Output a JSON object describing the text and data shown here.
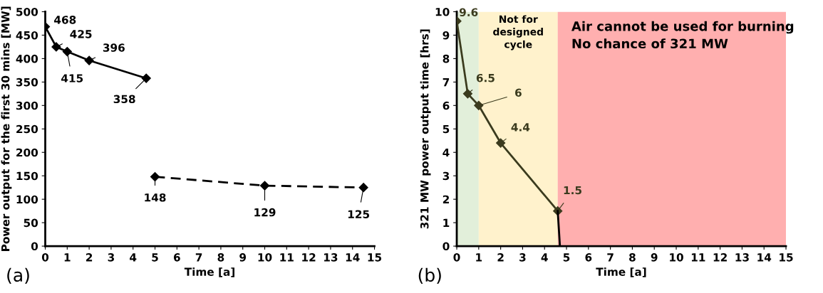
{
  "chart_data": [
    {
      "type": "line",
      "ylabel": "Power output for the first 30 mins [MW]",
      "xlabel": "Time [a]",
      "annotations": [
        "(a)"
      ],
      "xlim": [
        0,
        15
      ],
      "xticks": [
        0,
        1,
        2,
        3,
        4,
        5,
        6,
        7,
        8,
        9,
        10,
        11,
        12,
        13,
        14,
        15
      ],
      "ylim": [
        0,
        500
      ],
      "yticks": [
        0,
        50,
        100,
        150,
        200,
        250,
        300,
        350,
        400,
        450,
        500
      ],
      "marker": "diamond",
      "grid": false,
      "legend": false,
      "series": [
        {
          "color": "#000000",
          "line_style": "solid",
          "x": [
            0,
            0.5,
            1,
            2,
            4.6
          ],
          "values": [
            468,
            425,
            415,
            396,
            358
          ],
          "value_labels": [
            "468",
            "425",
            "415",
            "396",
            "358"
          ]
        },
        {
          "color": "#000000",
          "line_style": "dashed",
          "x": [
            5,
            10,
            14.5
          ],
          "values": [
            148,
            129,
            125
          ],
          "value_labels": [
            "148",
            "129",
            "125"
          ]
        }
      ]
    },
    {
      "type": "line",
      "ylabel": "321 MW power output time [hrs]",
      "xlabel": "Time [a]",
      "annotations": [
        "(b)"
      ],
      "xlim": [
        0,
        15
      ],
      "xticks": [
        0,
        1,
        2,
        3,
        4,
        5,
        6,
        7,
        8,
        9,
        10,
        11,
        12,
        13,
        14,
        15
      ],
      "ylim": [
        0,
        10
      ],
      "yticks": [
        0,
        1,
        2,
        3,
        4,
        5,
        6,
        7,
        8,
        9,
        10
      ],
      "grid": false,
      "legend": false,
      "bands": [
        {
          "axis": "x",
          "from": 0,
          "to": 1,
          "label": null,
          "color": "#e2efda"
        },
        {
          "axis": "x",
          "from": 1,
          "to": 4.6,
          "label": "Not for\ndesigned\ncycle",
          "color": "#fff2cc"
        },
        {
          "axis": "x",
          "from": 4.6,
          "to": 15,
          "label": "Air cannot be used for burning\nNo chance of 321 MW",
          "color": "#ffafaf"
        }
      ],
      "series": [
        {
          "color": "#3b3b1e",
          "line_style": "solid",
          "marker": "diamond",
          "x": [
            0,
            0.5,
            1,
            2,
            4.6
          ],
          "values": [
            9.6,
            6.5,
            6,
            4.4,
            1.5
          ],
          "value_labels": [
            "9.6",
            "6.5",
            "6",
            "4.4",
            "1.5"
          ]
        },
        {
          "color": "#000000",
          "line_style": "solid",
          "marker": "none",
          "x": [
            4.6,
            4.7
          ],
          "values": [
            1.5,
            0
          ]
        }
      ]
    }
  ]
}
